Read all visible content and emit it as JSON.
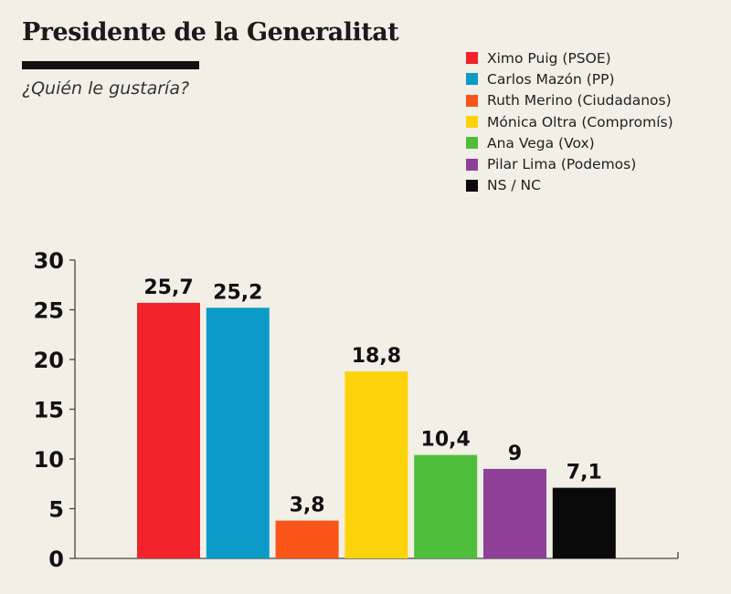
{
  "chart_data": {
    "type": "bar",
    "title": "Presidente de la Generalitat",
    "subtitle": "¿Quién le gustaría?",
    "categories": [
      "Ximo Puig (PSOE)",
      "Carlos Mazón (PP)",
      "Ruth Merino (Ciudadanos)",
      "Mónica Oltra (Compromís)",
      "Ana Vega (Vox)",
      "Pilar Lima (Podemos)",
      "NS / NC"
    ],
    "values": [
      25.7,
      25.2,
      3.8,
      18.8,
      10.4,
      9,
      7.1
    ],
    "value_labels": [
      "25,7",
      "25,2",
      "3,8",
      "18,8",
      "10,4",
      "9",
      "7,1"
    ],
    "colors": [
      "#f2232b",
      "#0c9ac8",
      "#fa5519",
      "#fcd20a",
      "#4fbe3b",
      "#8e3f98",
      "#0a0a0a"
    ],
    "ylim": [
      0,
      30
    ],
    "yticks": [
      0,
      5,
      10,
      15,
      20,
      25,
      30
    ],
    "ytick_labels": [
      "0",
      "5",
      "10",
      "15",
      "20",
      "25",
      "30"
    ],
    "legend_position": "top-right",
    "grid": false
  }
}
